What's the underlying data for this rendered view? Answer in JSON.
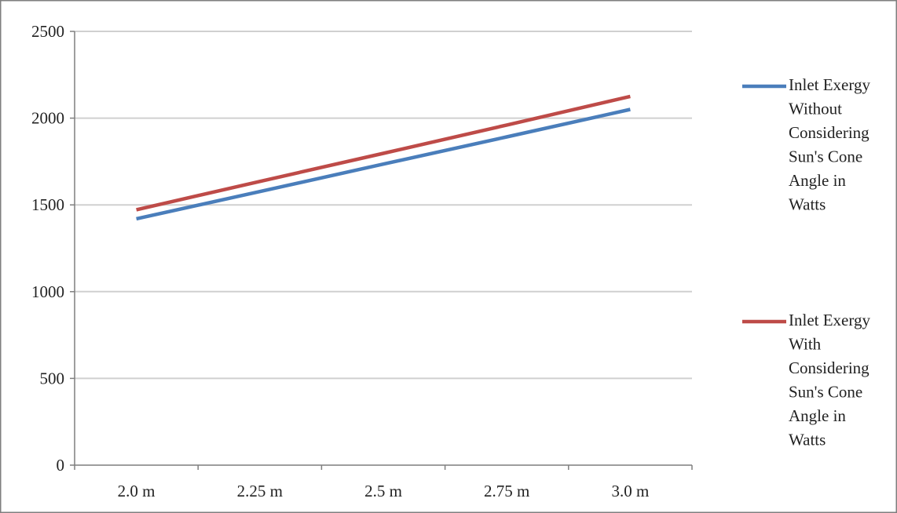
{
  "chart_data": {
    "type": "line",
    "title": "",
    "xlabel": "",
    "ylabel": "",
    "categories": [
      "2.0 m",
      "2.25 m",
      "2.5 m",
      "2.75 m",
      "3.0 m"
    ],
    "ylim": [
      0,
      2500
    ],
    "yticks": [
      "0",
      "500",
      "1000",
      "1500",
      "2000",
      "2500"
    ],
    "grid": "horizontal",
    "legend_position": "right",
    "series": [
      {
        "name": "Inlet Exergy Without Considering Sun's Cone Angle in Watts",
        "legend_lines": [
          "Inlet Exergy",
          "Without",
          "Considering",
          "Sun's Cone",
          "Angle in",
          "Watts"
        ],
        "color": "#4a7ebb",
        "values": [
          1420,
          1577,
          1735,
          1892,
          2050
        ]
      },
      {
        "name": "Inlet Exergy With Considering Sun's Cone Angle in Watts",
        "legend_lines": [
          "Inlet Exergy",
          "With",
          "Considering",
          "Sun's Cone",
          "Angle in",
          "Watts"
        ],
        "color": "#be4b48",
        "values": [
          1472,
          1635,
          1797,
          1960,
          2125
        ]
      }
    ]
  }
}
